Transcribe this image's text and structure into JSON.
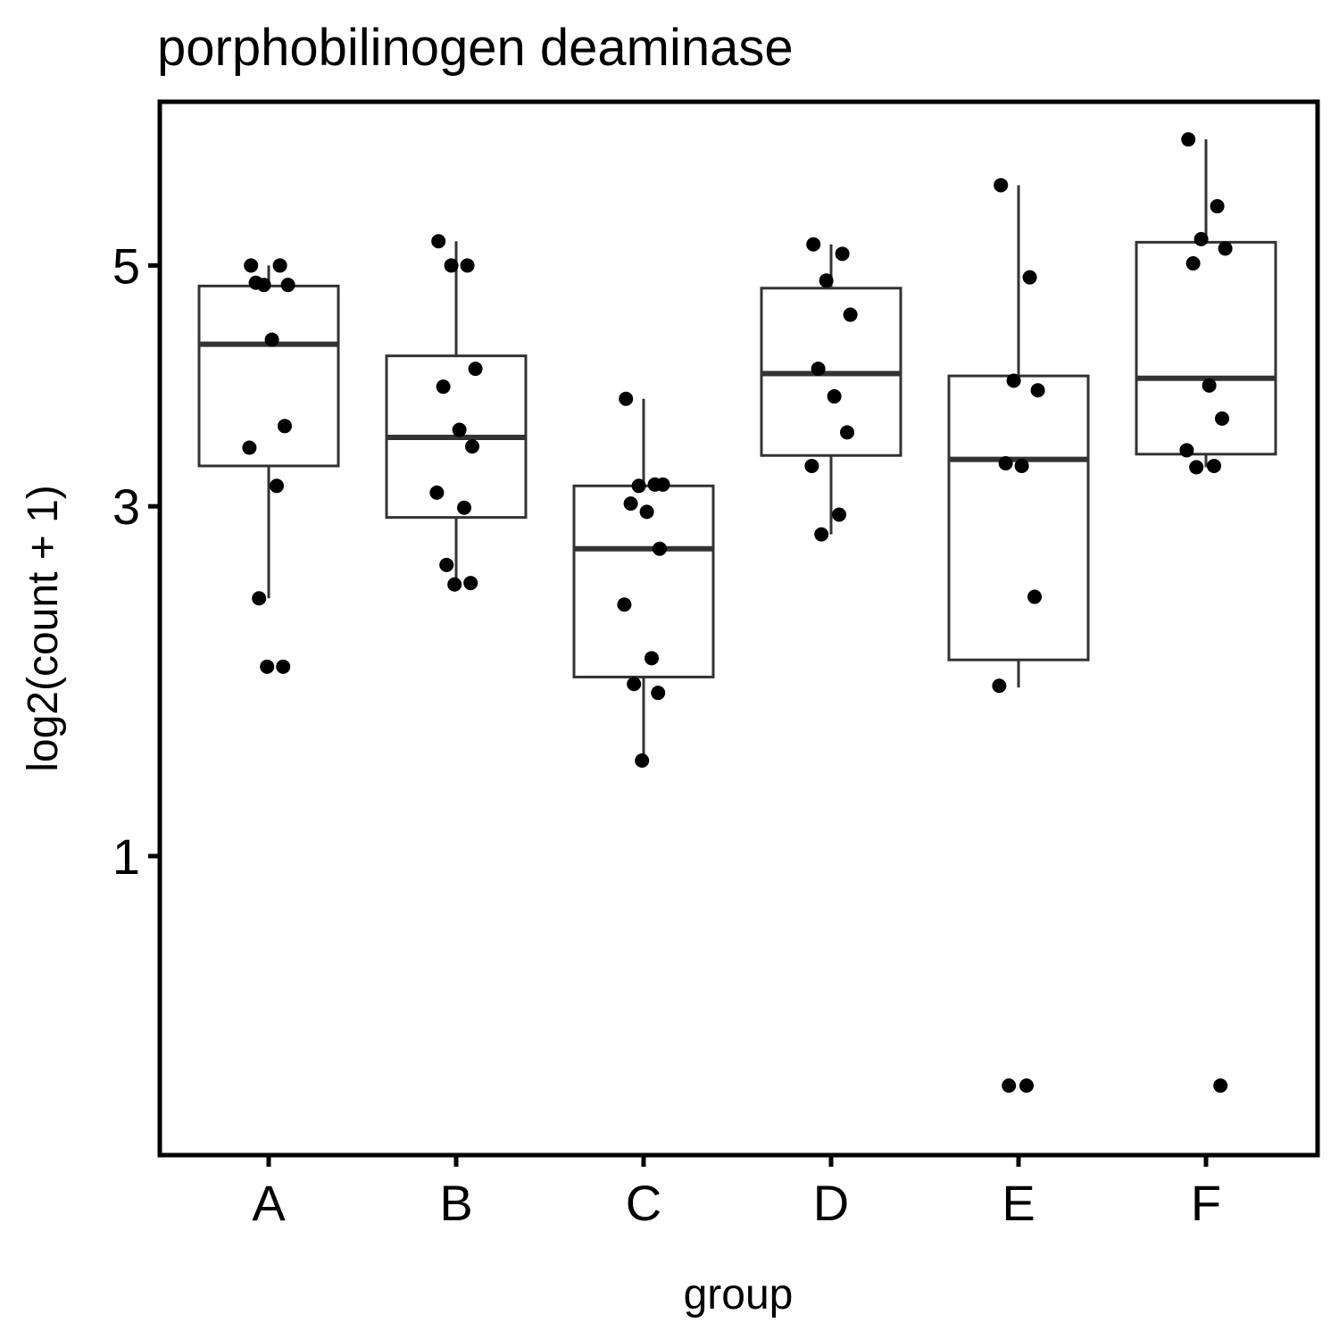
{
  "chart_data": {
    "type": "box",
    "title": "porphobilinogen deaminase",
    "xlabel": "group",
    "ylabel": "log2(count + 1)",
    "categories": [
      "A",
      "B",
      "C",
      "D",
      "E",
      "F"
    ],
    "yscale": "sqrt",
    "yticks": [
      1,
      3,
      5
    ],
    "ylim": [
      0.14,
      6.65
    ],
    "grid": false,
    "legend": "none",
    "boxes": [
      {
        "group": "A",
        "min": 2.37,
        "q1": 3.3,
        "median": 4.29,
        "q3": 4.81,
        "max": 5.0
      },
      {
        "group": "B",
        "min": 2.46,
        "q1": 2.92,
        "median": 3.52,
        "q3": 4.19,
        "max": 5.23
      },
      {
        "group": "C",
        "min": 1.44,
        "q1": 1.89,
        "median": 2.7,
        "q3": 3.15,
        "max": 3.83
      },
      {
        "group": "D",
        "min": 2.8,
        "q1": 3.38,
        "median": 4.04,
        "q3": 4.79,
        "max": 5.2
      },
      {
        "group": "E",
        "min": 1.83,
        "q1": 1.99,
        "median": 3.35,
        "q3": 4.02,
        "max": 5.78
      },
      {
        "group": "F",
        "min": 3.29,
        "q1": 3.39,
        "median": 4.0,
        "q3": 5.22,
        "max": 6.25
      }
    ],
    "points": [
      {
        "group": "A",
        "values": [
          5.0,
          5.0,
          4.82,
          4.82,
          4.84,
          4.33,
          3.61,
          3.44,
          3.15,
          2.37,
          1.95,
          1.95
        ]
      },
      {
        "group": "B",
        "values": [
          5.23,
          5.0,
          5.0,
          4.08,
          3.93,
          3.58,
          3.45,
          3.1,
          2.99,
          2.59,
          2.47,
          2.46
        ]
      },
      {
        "group": "C",
        "values": [
          3.83,
          3.16,
          3.15,
          3.16,
          3.02,
          2.96,
          2.7,
          2.33,
          2.0,
          1.85,
          1.8,
          1.44
        ]
      },
      {
        "group": "D",
        "values": [
          5.2,
          5.11,
          4.86,
          4.55,
          4.08,
          3.85,
          3.56,
          3.3,
          2.94,
          2.8
        ]
      },
      {
        "group": "E",
        "values": [
          5.78,
          4.89,
          3.98,
          3.9,
          3.32,
          3.3,
          2.38,
          1.84,
          0.27,
          0.27
        ]
      },
      {
        "group": "F",
        "values": [
          6.25,
          5.57,
          5.25,
          5.16,
          5.02,
          3.94,
          3.67,
          3.42,
          3.3,
          3.29,
          0.27
        ]
      }
    ]
  }
}
